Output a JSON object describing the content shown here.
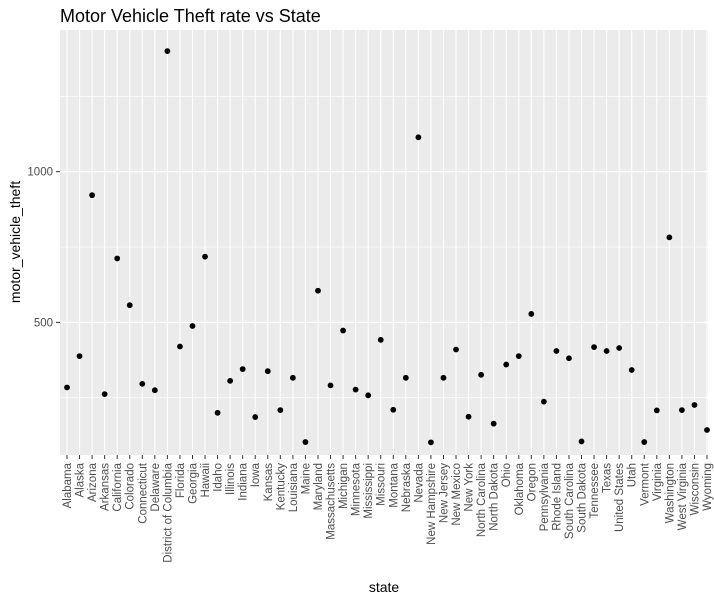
{
  "chart_data": {
    "type": "scatter",
    "title": "Motor Vehicle Theft rate vs State",
    "xlabel": "state",
    "ylabel": "motor_vehicle_theft",
    "y_ticks": [
      500,
      1000
    ],
    "ylim": [
      60,
      1470
    ],
    "grid": true,
    "legend": "none",
    "colors": {
      "panel": "#ebebeb",
      "grid": "#ffffff",
      "point": "#000000"
    },
    "categories": [
      "Alabama",
      "Alaska",
      "Arizona",
      "Arkansas",
      "California",
      "Colorado",
      "Connecticut",
      "Delaware",
      "District of Columbia",
      "Florida",
      "Georgia",
      "Hawaii",
      "Idaho",
      "Illinois",
      "Indiana",
      "Iowa",
      "Kansas",
      "Kentucky",
      "Louisiana",
      "Maine",
      "Maryland",
      "Massachusetts",
      "Michigan",
      "Minnesota",
      "Mississippi",
      "Missouri",
      "Montana",
      "Nebraska",
      "Nevada",
      "New Hampshire",
      "New Jersey",
      "New Mexico",
      "New York",
      "North Carolina",
      "North Dakota",
      "Ohio",
      "Oklahoma",
      "Oregon",
      "Pennsylvania",
      "Rhode Island",
      "South Carolina",
      "South Dakota",
      "Tennessee",
      "Texas",
      "United States",
      "Utah",
      "Vermont",
      "Virginia",
      "Washington",
      "West Virginia",
      "Wisconsin",
      "Wyoming"
    ],
    "values": [
      284,
      388,
      922,
      262,
      712,
      557,
      296,
      275,
      1400,
      420,
      488,
      718,
      200,
      306,
      345,
      186,
      338,
      209,
      316,
      103,
      605,
      291,
      473,
      277,
      258,
      442,
      210,
      316,
      1114,
      102,
      316,
      410,
      187,
      326,
      164,
      360,
      388,
      528,
      237,
      405,
      381,
      105,
      418,
      405,
      415,
      342,
      103,
      208,
      782,
      209,
      226,
      143
    ]
  }
}
